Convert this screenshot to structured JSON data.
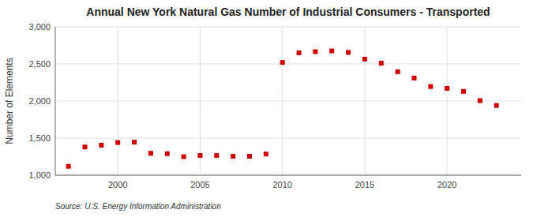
{
  "chart_data": {
    "type": "scatter",
    "title": "Annual New York Natural Gas Number of Industrial Consumers - Transported",
    "ylabel": "Number of Elements",
    "annotations": [
      "Source: U.S. Energy Information Administration"
    ],
    "x": [
      1997,
      1998,
      1999,
      2000,
      2001,
      2002,
      2003,
      2004,
      2005,
      2006,
      2007,
      2008,
      2009,
      2010,
      2011,
      2012,
      2013,
      2014,
      2015,
      2016,
      2017,
      2018,
      2019,
      2020,
      2021,
      2022,
      2023
    ],
    "values": [
      1120,
      1380,
      1405,
      1440,
      1445,
      1295,
      1290,
      1250,
      1265,
      1265,
      1255,
      1255,
      1285,
      2520,
      2650,
      2665,
      2675,
      2655,
      2565,
      2510,
      2395,
      2310,
      2195,
      2170,
      2130,
      2005,
      1940
    ],
    "color": "#cc0000",
    "marker": "square",
    "xlim": [
      1996.2,
      2024.5
    ],
    "ylim": [
      1000,
      3000
    ],
    "xticks": [
      2000,
      2005,
      2010,
      2015,
      2020
    ],
    "yticks": [
      {
        "value": 1000,
        "label": "1,000"
      },
      {
        "value": 1500,
        "label": "1,500"
      },
      {
        "value": 2000,
        "label": "2,000"
      },
      {
        "value": 2500,
        "label": "2,500"
      },
      {
        "value": 3000,
        "label": "3,000"
      }
    ],
    "grid": true
  }
}
